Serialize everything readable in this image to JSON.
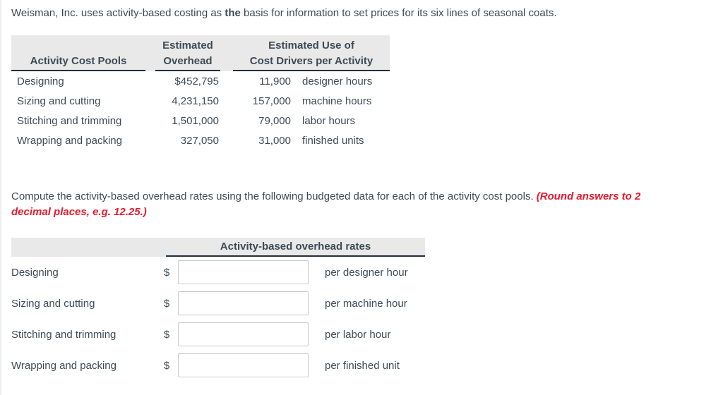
{
  "problem": {
    "part1": "Weisman, Inc. uses activity-based costing as ",
    "emphasis": "the",
    "part2": " basis for information to set prices for its six lines of seasonal coats."
  },
  "instruction": {
    "text": "Compute the activity-based overhead rates using the following budgeted data for each of the activity cost pools.",
    "note_line1": "(Round answers to 2",
    "note_line2": "decimal places, e.g. 12.25.)"
  },
  "table1": {
    "headers": {
      "pools": "Activity Cost Pools",
      "overhead_line1": "Estimated",
      "overhead_line2": "Overhead",
      "drivers_line1": "Estimated Use of",
      "drivers_line2": "Cost Drivers per Activity"
    },
    "rows": [
      {
        "pool": "Designing",
        "overhead": "$452,795",
        "driver_qty": "11,900",
        "driver_unit": "designer hours"
      },
      {
        "pool": "Sizing and cutting",
        "overhead": "4,231,150",
        "driver_qty": "157,000",
        "driver_unit": "machine hours"
      },
      {
        "pool": "Stitching and trimming",
        "overhead": "1,501,000",
        "driver_qty": "79,000",
        "driver_unit": "labor hours"
      },
      {
        "pool": "Wrapping and packing",
        "overhead": "327,050",
        "driver_qty": "31,000",
        "driver_unit": "finished units"
      }
    ]
  },
  "table2": {
    "header": "Activity-based overhead rates",
    "currency_symbol": "$",
    "rows": [
      {
        "pool": "Designing",
        "input_value": "",
        "unit": "per designer hour"
      },
      {
        "pool": "Sizing and cutting",
        "input_value": "",
        "unit": "per machine hour"
      },
      {
        "pool": "Stitching and trimming",
        "input_value": "",
        "unit": "per labor hour"
      },
      {
        "pool": "Wrapping and packing",
        "input_value": "",
        "unit": "per finished unit"
      }
    ]
  },
  "colors": {
    "text": "#3d4a55",
    "accent_red": "#e8192c",
    "header_bg": "#e9e9e9",
    "rule": "#232f3b",
    "input_border": "#c9c9c9"
  }
}
